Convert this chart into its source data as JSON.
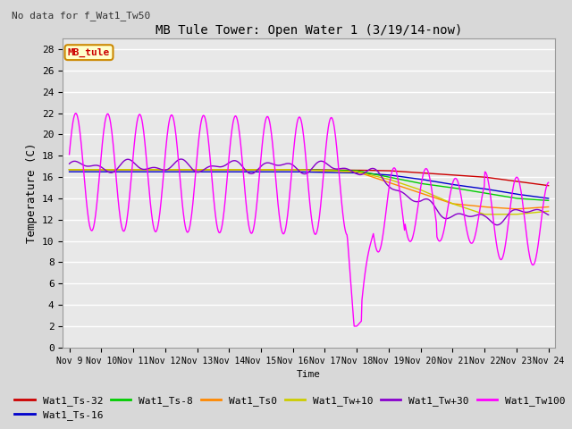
{
  "title": "MB Tule Tower: Open Water 1 (3/19/14-now)",
  "subtitle": "No data for f_Wat1_Tw50",
  "xlabel": "Time",
  "ylabel": "Temperature (C)",
  "ylim": [
    0,
    29
  ],
  "yticks": [
    0,
    2,
    4,
    6,
    8,
    10,
    12,
    14,
    16,
    18,
    20,
    22,
    24,
    26,
    28
  ],
  "xtick_labels": [
    "Nov 9",
    "Nov 10",
    "Nov 11",
    "Nov 12",
    "Nov 13",
    "Nov 14",
    "Nov 15",
    "Nov 16",
    "Nov 17",
    "Nov 18",
    "Nov 19",
    "Nov 20",
    "Nov 21",
    "Nov 22",
    "Nov 23",
    "Nov 24"
  ],
  "background_color": "#d8d8d8",
  "plot_bg_color": "#e8e8e8",
  "grid_color": "#ffffff",
  "series_colors": {
    "Wat1_Ts-32": "#cc0000",
    "Wat1_Ts-16": "#0000cc",
    "Wat1_Ts-8": "#00cc00",
    "Wat1_Ts0": "#ff8800",
    "Wat1_Tw+10": "#cccc00",
    "Wat1_Tw+30": "#8800cc",
    "Wat1_Tw100": "#ff00ff"
  },
  "annotation_text": "MB_tule",
  "annotation_color": "#cc0000",
  "annotation_bg": "#ffffcc",
  "annotation_border": "#cc8800"
}
